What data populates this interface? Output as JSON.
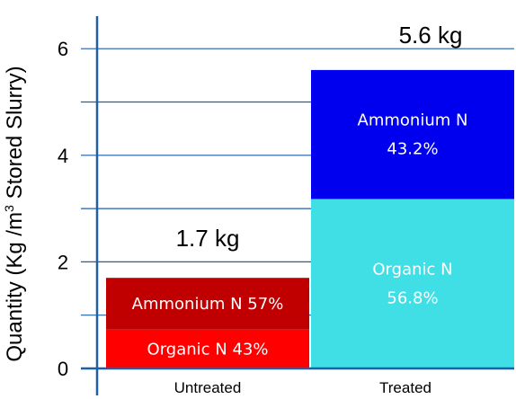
{
  "chart_data": {
    "type": "bar",
    "stacked": true,
    "ylabel_parts": [
      "Quantity (Kg /m",
      "3",
      " Stored Slurry)"
    ],
    "ylim": [
      0,
      6.5
    ],
    "yticks": [
      0,
      2,
      4,
      6
    ],
    "grid": true,
    "categories": [
      "Untreated",
      "Treated"
    ],
    "totals": [
      "1.7 kg",
      "5.6 kg"
    ],
    "series": [
      {
        "name": "Organic N",
        "values": [
          0.73,
          3.18
        ],
        "colors": [
          "#ff0000",
          "#40dfe6"
        ],
        "labels": [
          [
            "Organic N 43%"
          ],
          [
            "Organic N",
            "56.8%"
          ]
        ]
      },
      {
        "name": "Ammonium N",
        "values": [
          0.97,
          2.42
        ],
        "colors": [
          "#c00000",
          "#0000ee"
        ],
        "labels": [
          [
            "Ammonium N 57%"
          ],
          [
            "Ammonium N",
            "43.2%"
          ]
        ]
      }
    ],
    "axis_color": "#1f5fa6",
    "grid_color": "#1f5fa6"
  }
}
